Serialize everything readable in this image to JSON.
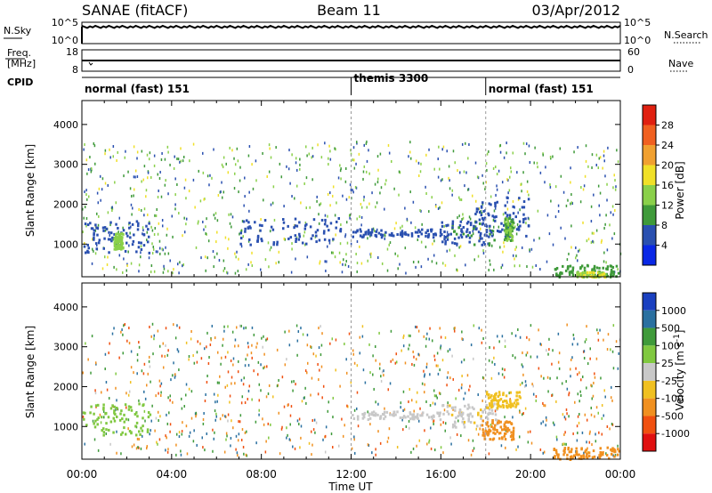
{
  "header": {
    "station": "SANAE (fitACF)",
    "beam": "Beam 11",
    "date": "03/Apr/2012"
  },
  "noise_panel": {
    "left_label": "N.Sky",
    "left_ticks": [
      "10^5",
      "10^0"
    ],
    "right_ticks": [
      "10^5",
      "10^0"
    ],
    "right_label": "N.Search"
  },
  "freq_panel": {
    "left_label_1": "Freq.",
    "left_label_2": "[MHz]",
    "left_ticks": [
      "18",
      "8"
    ],
    "right_ticks": [
      "60",
      "0"
    ],
    "right_label": "Nave"
  },
  "cpid_panel": {
    "label": "CPID",
    "modes": [
      {
        "name": "normal (fast) 151",
        "start": 0
      },
      {
        "name": "themis 3300",
        "start": 12
      },
      {
        "name": "normal (fast) 151",
        "start": 18
      }
    ]
  },
  "power_colorbar": {
    "label": "Power [dB]",
    "ticks": [
      "4",
      "8",
      "12",
      "16",
      "20",
      "24",
      "28"
    ],
    "colors": [
      "#0a28e6",
      "#2a50b0",
      "#3f9a3a",
      "#8ad04a",
      "#f0e028",
      "#f0a030",
      "#f06020",
      "#e02010"
    ]
  },
  "velocity_colorbar": {
    "label": "Velocity [m s",
    "label_sup": "-1",
    "label_end": "]",
    "ticks": [
      "1000",
      "500",
      "100",
      "25",
      "-25",
      "-100",
      "-500",
      "-1000"
    ],
    "colors": [
      "#1a40c0",
      "#2a70a0",
      "#3f9a3a",
      "#80c840",
      "#c8c8c8",
      "#f0c020",
      "#f09020",
      "#f05010",
      "#e01010"
    ]
  },
  "axes": {
    "ylabel": "Slant Range [km]",
    "yticks": [
      "4000",
      "3000",
      "2000",
      "1000"
    ],
    "xticks": [
      "00:00",
      "04:00",
      "08:00",
      "12:00",
      "16:00",
      "20:00",
      "00:00"
    ],
    "xlabel": "Time UT"
  },
  "chart_data": [
    {
      "type": "heatmap",
      "title": "",
      "quantity": "Power",
      "xlabel": "",
      "ylabel": "Slant Range [km]",
      "xlim": [
        0,
        24
      ],
      "ylim": [
        180,
        4600
      ],
      "colorbar_label": "Power [dB]",
      "clim": [
        0,
        32
      ],
      "regions": [
        {
          "t": [
            0.0,
            3.0
          ],
          "r": [
            800,
            1600
          ],
          "value": 6
        },
        {
          "t": [
            1.4,
            1.8
          ],
          "r": [
            900,
            1300
          ],
          "value": 14
        },
        {
          "t": [
            7.0,
            11.5
          ],
          "r": [
            1000,
            1700
          ],
          "value": 6
        },
        {
          "t": [
            12.0,
            16.0
          ],
          "r": [
            1200,
            1400
          ],
          "value": 6
        },
        {
          "t": [
            16.0,
            18.5
          ],
          "r": [
            1000,
            1600
          ],
          "value": 7
        },
        {
          "t": [
            17.5,
            20.0
          ],
          "r": [
            1200,
            2200
          ],
          "value": 6
        },
        {
          "t": [
            18.8,
            19.2
          ],
          "r": [
            1100,
            1700
          ],
          "value": 12
        },
        {
          "t": [
            21.0,
            23.9
          ],
          "r": [
            200,
            500
          ],
          "value": 10
        },
        {
          "t": [
            22.0,
            23.3
          ],
          "r": [
            200,
            320
          ],
          "value": 16
        }
      ]
    },
    {
      "type": "heatmap",
      "title": "",
      "quantity": "Velocity",
      "xlabel": "Time UT",
      "ylabel": "Slant Range [km]",
      "xlim": [
        0,
        24
      ],
      "ylim": [
        180,
        4600
      ],
      "colorbar_label": "Velocity [m s-1]",
      "clim": [
        -1000,
        1000
      ],
      "regions": [
        {
          "t": [
            0.0,
            3.0
          ],
          "r": [
            800,
            1600
          ],
          "value": 50
        },
        {
          "t": [
            12.0,
            16.0
          ],
          "r": [
            1200,
            1400
          ],
          "value": 0
        },
        {
          "t": [
            16.0,
            18.5
          ],
          "r": [
            1000,
            1600
          ],
          "value": -10
        },
        {
          "t": [
            17.8,
            19.2
          ],
          "r": [
            700,
            1200
          ],
          "value": -150
        },
        {
          "t": [
            18.0,
            19.5
          ],
          "r": [
            1500,
            1900
          ],
          "value": -60
        },
        {
          "t": [
            21.0,
            23.9
          ],
          "r": [
            200,
            500
          ],
          "value": -200
        }
      ]
    }
  ]
}
